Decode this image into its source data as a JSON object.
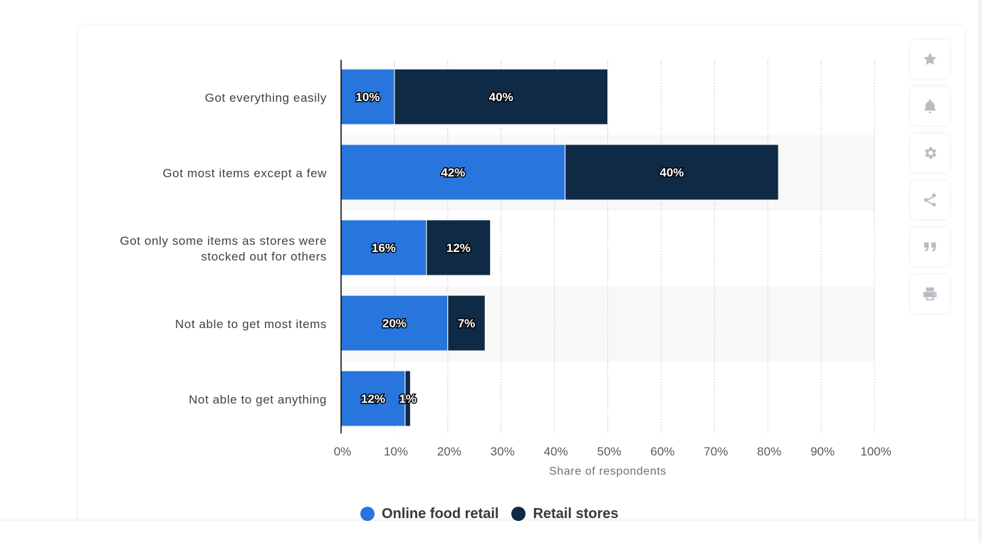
{
  "chart_data": {
    "type": "bar",
    "orientation": "horizontal",
    "stacked": true,
    "categories": [
      "Got everything easily",
      "Got most items except a few",
      "Got only some items as stores were stocked out for others",
      "Not able to get most items",
      "Not able to get anything"
    ],
    "category_lines": [
      [
        "Got everything easily"
      ],
      [
        "Got most items except a few"
      ],
      [
        "Got only some items as stores were",
        "stocked out for others"
      ],
      [
        "Not able to get most items"
      ],
      [
        "Not able to get anything"
      ]
    ],
    "series": [
      {
        "name": "Online food retail",
        "values": [
          10,
          42,
          16,
          20,
          12
        ],
        "labels": [
          "10%",
          "42%",
          "16%",
          "20%",
          "12%"
        ],
        "color": "#2876dd"
      },
      {
        "name": "Retail stores",
        "values": [
          40,
          40,
          12,
          7,
          1
        ],
        "labels": [
          "40%",
          "40%",
          "12%",
          "7%",
          "1%"
        ],
        "color": "#0f2a45"
      }
    ],
    "xlim": [
      0,
      100
    ],
    "xticks": [
      "0%",
      "10%",
      "20%",
      "30%",
      "40%",
      "50%",
      "60%",
      "70%",
      "80%",
      "90%",
      "100%"
    ],
    "xlabel": "Share of respondents",
    "grid": true,
    "legend_position": "bottom"
  },
  "legend": {
    "online": "Online food retail",
    "retail": "Retail stores"
  },
  "colors": {
    "online": "#2876dd",
    "retail": "#0f2a45",
    "band": "#f8f8f8",
    "grid": "#c8ccd1"
  },
  "sidebar": {
    "buttons": [
      {
        "name": "favorite-button",
        "icon": "star-icon"
      },
      {
        "name": "notification-button",
        "icon": "bell-icon"
      },
      {
        "name": "settings-button",
        "icon": "gear-icon"
      },
      {
        "name": "share-button",
        "icon": "share-icon"
      },
      {
        "name": "cite-button",
        "icon": "quote-icon"
      },
      {
        "name": "print-button",
        "icon": "printer-icon"
      }
    ]
  }
}
